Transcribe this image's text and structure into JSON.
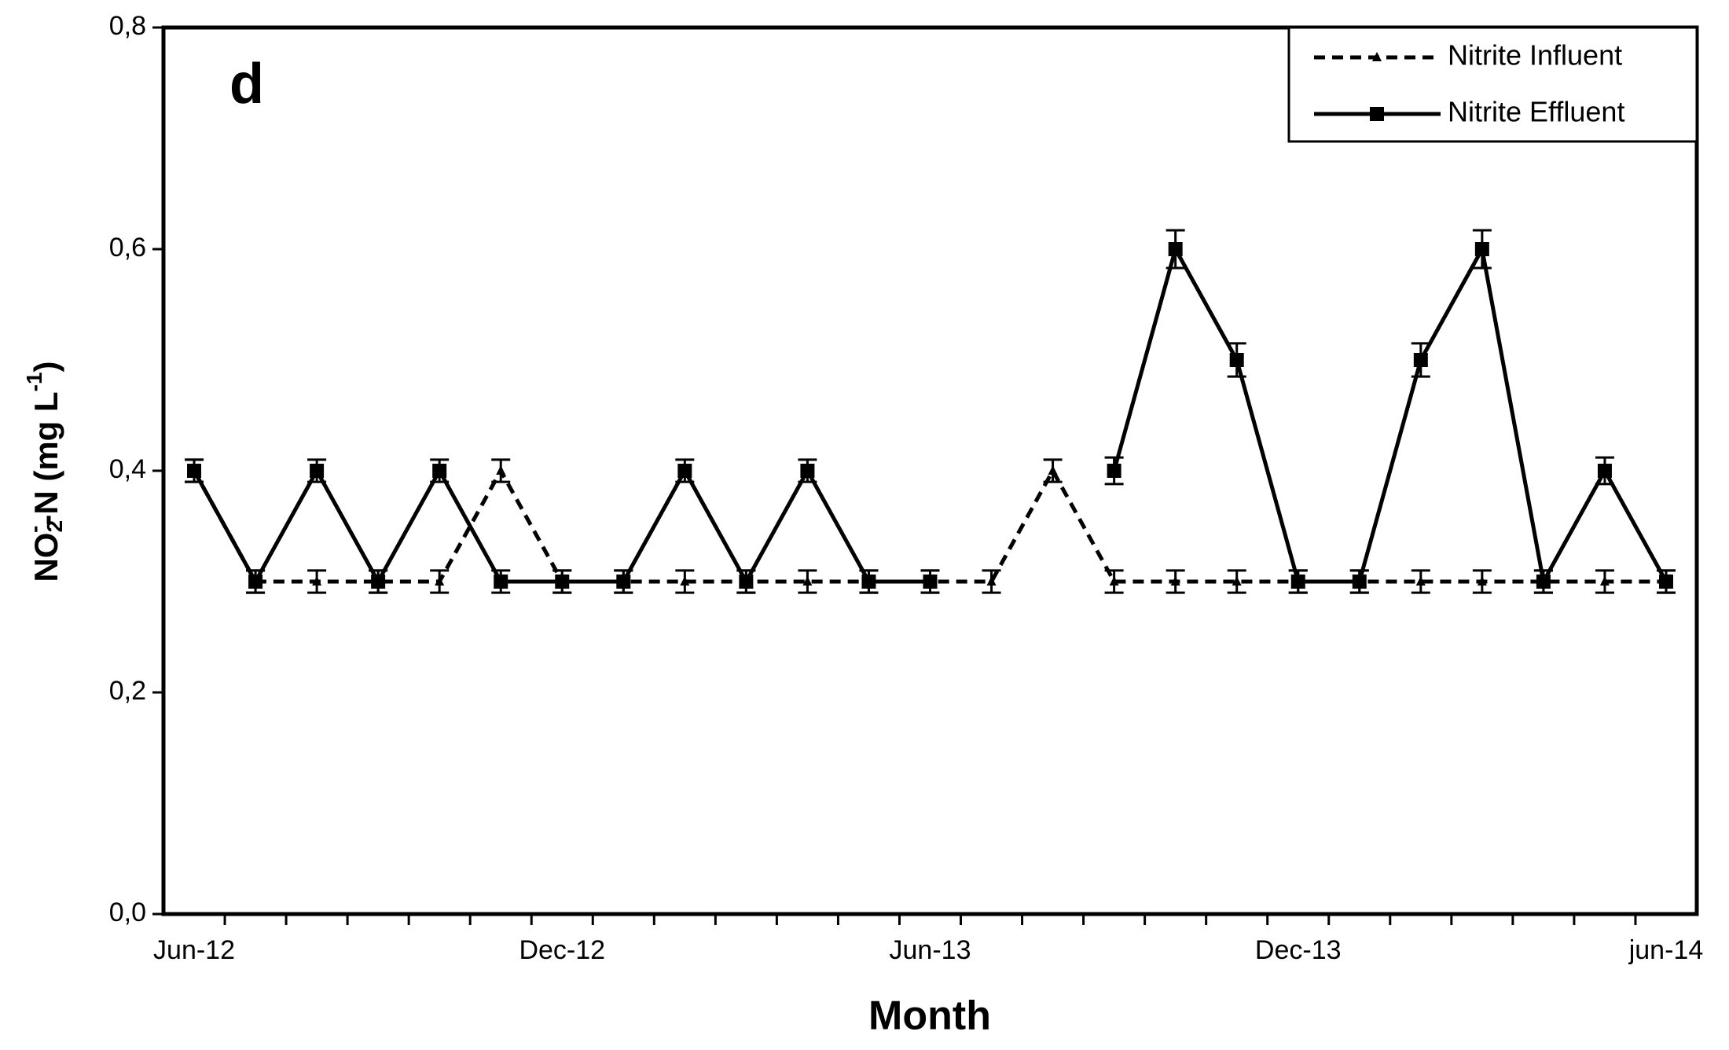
{
  "chart_data": {
    "type": "line",
    "panel_label": "d",
    "xlabel": "Month",
    "ylabel": [
      "NO",
      "2",
      "-",
      "-N (mg L",
      "-1",
      ")"
    ],
    "categories": [
      "Jun-12",
      null,
      null,
      null,
      null,
      null,
      "Dec-12",
      null,
      null,
      null,
      null,
      null,
      "Jun-13",
      null,
      null,
      null,
      null,
      null,
      "Dec-13",
      null,
      null,
      null,
      null,
      null,
      "jun-14"
    ],
    "series": [
      {
        "name": "Nitrite Influent",
        "color": "#000000",
        "dash": true,
        "marker": "triangle",
        "values": [
          0.4,
          0.3,
          0.3,
          0.3,
          0.3,
          0.4,
          0.3,
          0.3,
          0.3,
          0.3,
          0.3,
          0.3,
          0.3,
          0.3,
          0.4,
          0.3,
          0.3,
          0.3,
          0.3,
          0.3,
          0.3,
          0.3,
          0.3,
          0.3,
          0.3
        ],
        "errors": [
          0.01,
          0.01,
          0.01,
          0.01,
          0.01,
          0.01,
          0.01,
          0.01,
          0.01,
          0.01,
          0.01,
          0.01,
          0.01,
          0.01,
          0.01,
          0.01,
          0.01,
          0.01,
          0.01,
          0.01,
          0.01,
          0.01,
          0.01,
          0.01,
          0.01
        ]
      },
      {
        "name": "Nitrite Effluent",
        "color": "#000000",
        "dash": false,
        "marker": "square",
        "values": [
          0.4,
          0.3,
          0.4,
          0.3,
          0.4,
          0.3,
          0.3,
          0.3,
          0.4,
          0.3,
          0.4,
          0.3,
          0.3,
          null,
          null,
          0.4,
          0.6,
          0.5,
          0.3,
          0.3,
          0.5,
          0.6,
          0.3,
          0.4,
          0.3
        ],
        "errors": [
          0.01,
          0.01,
          0.01,
          0.01,
          0.01,
          0.01,
          0.01,
          0.01,
          0.01,
          0.01,
          0.01,
          0.01,
          0.01,
          null,
          null,
          0.012,
          0.017,
          0.015,
          0.01,
          0.01,
          0.015,
          0.017,
          0.01,
          0.012,
          0.01
        ]
      }
    ],
    "ylim": [
      0,
      0.8
    ],
    "yticks": [
      {
        "value": 0,
        "label": "0,0"
      },
      {
        "value": 0.2,
        "label": "0,2"
      },
      {
        "value": 0.4,
        "label": "0,4"
      },
      {
        "value": 0.6,
        "label": "0,6"
      },
      {
        "value": 0.8,
        "label": "0,8"
      }
    ],
    "legend": "upper right"
  }
}
